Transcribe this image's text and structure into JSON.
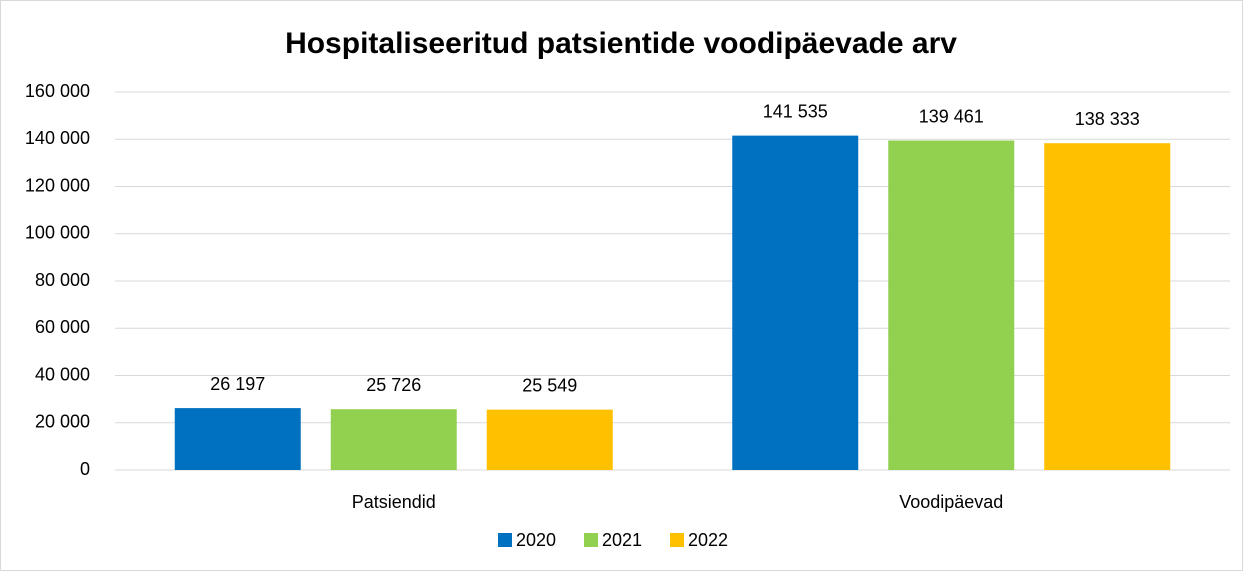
{
  "chart_data": {
    "type": "bar",
    "title": "Hospitaliseeritud patsientide voodipäevade arv",
    "categories": [
      "Patsiendid",
      "Voodipäevad"
    ],
    "series": [
      {
        "name": "2020",
        "color": "#0070c0",
        "values": [
          26197,
          141535
        ],
        "value_labels": [
          "26 197",
          "141 535"
        ]
      },
      {
        "name": "2021",
        "color": "#92d050",
        "values": [
          25726,
          139461
        ],
        "value_labels": [
          "25 726",
          "139 461"
        ]
      },
      {
        "name": "2022",
        "color": "#ffc000",
        "values": [
          25549,
          138333
        ],
        "value_labels": [
          "25 549",
          "138 333"
        ]
      }
    ],
    "ylim": [
      0,
      160000
    ],
    "yticks": [
      {
        "value": 0,
        "label": "0"
      },
      {
        "value": 20000,
        "label": "20 000"
      },
      {
        "value": 40000,
        "label": "40 000"
      },
      {
        "value": 60000,
        "label": "60 000"
      },
      {
        "value": 80000,
        "label": "80 000"
      },
      {
        "value": 100000,
        "label": "100 000"
      },
      {
        "value": 120000,
        "label": "120 000"
      },
      {
        "value": 140000,
        "label": "140 000"
      },
      {
        "value": 160000,
        "label": "160 000"
      }
    ],
    "grid": true,
    "legend": "bottom"
  }
}
